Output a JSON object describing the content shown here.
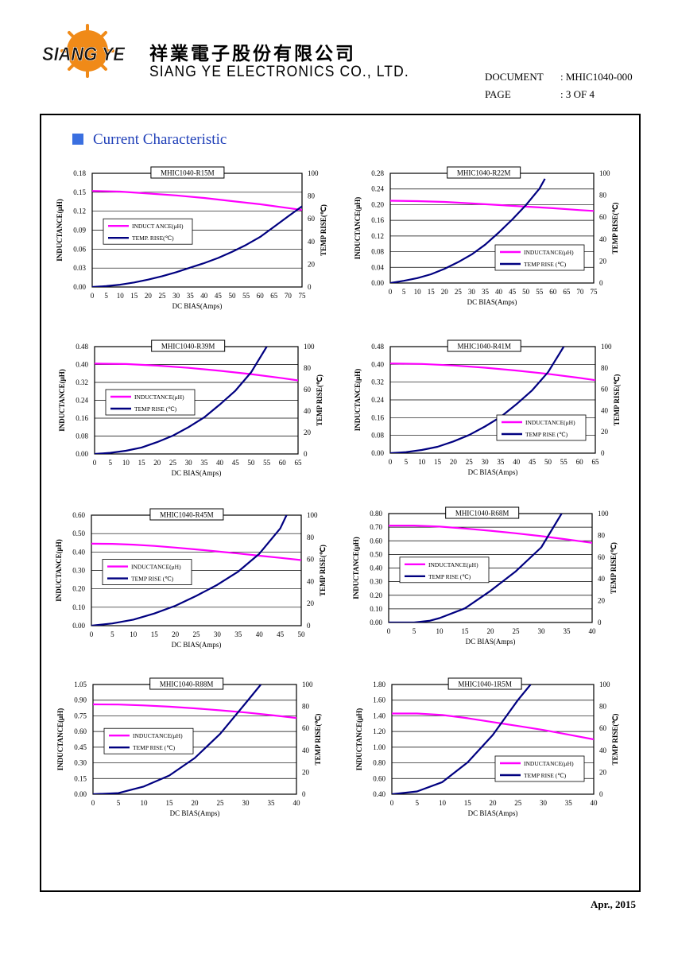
{
  "header": {
    "logo_text": "SIANG YE",
    "company_name_cn": "祥業電子股份有限公司",
    "company_name_en": "SIANG YE ELECTRONICS CO., LTD.",
    "document_label": "DOCUMENT",
    "document_value": ": MHIC1040-000",
    "page_label": "PAGE",
    "page_value": ": 3 OF 4"
  },
  "section_title": "Current Characteristic",
  "footer": {
    "date": "Apr., 2015"
  },
  "colors": {
    "inductance": "#ff00ff",
    "temp_rise": "#000080",
    "section": "#1f3fb8"
  },
  "chart_data": [
    {
      "type": "line",
      "title": "MHIC1040-R15M",
      "xlabel": "DC BIAS(Amps)",
      "ylabel": "INDUCTANCE(μH)",
      "y2label": "TEMP RISE(℃)",
      "xlim": [
        0,
        75
      ],
      "xticks": [
        0,
        5,
        10,
        15,
        20,
        25,
        30,
        35,
        40,
        45,
        50,
        55,
        60,
        65,
        70,
        75
      ],
      "ylim": [
        0,
        0.18
      ],
      "yticks": [
        0,
        0.03,
        0.06,
        0.09,
        0.12,
        0.15,
        0.18
      ],
      "ydec": 2,
      "y2lim": [
        0,
        100
      ],
      "y2ticks": [
        0,
        20,
        40,
        60,
        80,
        100
      ],
      "legend_position": "left",
      "series": [
        {
          "name": "INDUCT ANCE(μH)",
          "axis": "left",
          "x": [
            0,
            10,
            20,
            30,
            40,
            50,
            60,
            70,
            75
          ],
          "y": [
            0.152,
            0.151,
            0.148,
            0.145,
            0.141,
            0.136,
            0.131,
            0.125,
            0.122
          ]
        },
        {
          "name": "TEMP. RISE(℃)",
          "axis": "right",
          "x": [
            0,
            5,
            10,
            15,
            20,
            25,
            30,
            35,
            40,
            45,
            50,
            55,
            60,
            65,
            70,
            75
          ],
          "y": [
            0,
            0.8,
            2,
            4,
            6.5,
            9.5,
            13,
            17,
            21,
            25.5,
            31,
            37,
            44,
            53,
            62,
            71
          ]
        }
      ]
    },
    {
      "type": "line",
      "title": "MHIC1040-R22M",
      "xlabel": "DC BIAS(Amps)",
      "ylabel": "INDUCTANCE(μH)",
      "y2label": "TEMP RISE(℃)",
      "xlim": [
        0,
        75
      ],
      "xticks": [
        0,
        5,
        10,
        15,
        20,
        25,
        30,
        35,
        40,
        45,
        50,
        55,
        60,
        65,
        70,
        75
      ],
      "ylim": [
        0,
        0.28
      ],
      "yticks": [
        0,
        0.04,
        0.08,
        0.12,
        0.16,
        0.2,
        0.24,
        0.28
      ],
      "ydec": 2,
      "y2lim": [
        0,
        100
      ],
      "y2ticks": [
        0,
        20,
        40,
        60,
        80,
        100
      ],
      "legend_position": "bottom-right",
      "series": [
        {
          "name": "INDUCTANCE(μH)",
          "axis": "left",
          "x": [
            0,
            10,
            20,
            30,
            40,
            50,
            60,
            70,
            75
          ],
          "y": [
            0.21,
            0.209,
            0.207,
            0.203,
            0.199,
            0.195,
            0.191,
            0.186,
            0.184
          ]
        },
        {
          "name": "TEMP RISE (℃)",
          "axis": "right",
          "x": [
            0,
            5,
            10,
            15,
            20,
            25,
            30,
            35,
            40,
            45,
            50,
            55,
            57
          ],
          "y": [
            0,
            2,
            4.5,
            8,
            13,
            19,
            26,
            35,
            46,
            58,
            71,
            86,
            95
          ]
        }
      ]
    },
    {
      "type": "line",
      "title": "MHIC1040-R39M",
      "xlabel": "DC BIAS(Amps)",
      "ylabel": "INDUCTANCE(μH)",
      "y2label": "TEMP RISE(℃)",
      "xlim": [
        0,
        65
      ],
      "xticks": [
        0,
        5,
        10,
        15,
        20,
        25,
        30,
        35,
        40,
        45,
        50,
        55,
        60,
        65
      ],
      "ylim": [
        0,
        0.48
      ],
      "yticks": [
        0,
        0.08,
        0.16,
        0.24,
        0.32,
        0.4,
        0.48
      ],
      "ydec": 2,
      "y2lim": [
        0,
        100
      ],
      "y2ticks": [
        0,
        20,
        40,
        60,
        80,
        100
      ],
      "legend_position": "left",
      "series": [
        {
          "name": "INDUCTANCE(μH)",
          "axis": "left",
          "x": [
            0,
            10,
            20,
            30,
            40,
            50,
            60,
            65
          ],
          "y": [
            0.404,
            0.402,
            0.395,
            0.385,
            0.372,
            0.357,
            0.339,
            0.329
          ]
        },
        {
          "name": "TEMP RISE (℃)",
          "axis": "right",
          "x": [
            0,
            5,
            10,
            15,
            20,
            25,
            30,
            35,
            40,
            45,
            50,
            55
          ],
          "y": [
            0,
            1,
            3,
            6,
            11,
            17,
            25,
            34,
            46,
            59,
            76,
            100
          ]
        }
      ]
    },
    {
      "type": "line",
      "title": "MHIC1040-R41M",
      "xlabel": "DC BIAS(Amps)",
      "ylabel": "INDUCTANCE(μH)",
      "y2label": "TEMP RISE(℃)",
      "xlim": [
        0,
        65
      ],
      "xticks": [
        0,
        5,
        10,
        15,
        20,
        25,
        30,
        35,
        40,
        45,
        50,
        55,
        60,
        65
      ],
      "ylim": [
        0,
        0.48
      ],
      "yticks": [
        0,
        0.08,
        0.16,
        0.24,
        0.32,
        0.4,
        0.48
      ],
      "ydec": 2,
      "y2lim": [
        0,
        100
      ],
      "y2ticks": [
        0,
        20,
        40,
        60,
        80,
        100
      ],
      "legend_position": "bottom-right",
      "series": [
        {
          "name": "INDUCTANCE(μH)",
          "axis": "left",
          "x": [
            0,
            10,
            20,
            30,
            40,
            50,
            60,
            65
          ],
          "y": [
            0.404,
            0.402,
            0.395,
            0.385,
            0.372,
            0.357,
            0.339,
            0.329
          ]
        },
        {
          "name": "TEMP RISE (℃)",
          "axis": "right",
          "x": [
            0,
            5,
            10,
            15,
            20,
            25,
            30,
            35,
            40,
            45,
            50,
            55
          ],
          "y": [
            0,
            1,
            3,
            6,
            11,
            17,
            25,
            34,
            46,
            59,
            76,
            100
          ]
        }
      ]
    },
    {
      "type": "line",
      "title": "MHIC1040-R45M",
      "xlabel": "DC BIAS(Amps)",
      "ylabel": "INDUCTANCE(μH)",
      "y2label": "TEMP RISE(℃)",
      "xlim": [
        0,
        50
      ],
      "xticks": [
        0,
        5,
        10,
        15,
        20,
        25,
        30,
        35,
        40,
        45,
        50
      ],
      "ylim": [
        0,
        0.6
      ],
      "yticks": [
        0,
        0.1,
        0.2,
        0.3,
        0.4,
        0.5,
        0.6
      ],
      "ydec": 2,
      "y2lim": [
        0,
        100
      ],
      "y2ticks": [
        0,
        20,
        40,
        60,
        80,
        100
      ],
      "legend_position": "left",
      "series": [
        {
          "name": "INDUCTANCE(μH)",
          "axis": "left",
          "x": [
            0,
            5,
            10,
            15,
            20,
            25,
            30,
            35,
            40,
            45,
            50
          ],
          "y": [
            0.445,
            0.444,
            0.44,
            0.433,
            0.424,
            0.414,
            0.403,
            0.392,
            0.38,
            0.368,
            0.356
          ]
        },
        {
          "name": "TEMP RISE (℃)",
          "axis": "right",
          "x": [
            0,
            5,
            10,
            15,
            20,
            25,
            30,
            35,
            40,
            45,
            46.5
          ],
          "y": [
            0,
            2,
            5.5,
            11,
            18,
            27,
            37,
            49,
            65,
            88,
            100
          ]
        }
      ]
    },
    {
      "type": "line",
      "title": "MHIC1040-R68M",
      "xlabel": "DC BIAS(Amps)",
      "ylabel": "INDUCTANCE(μH)",
      "y2label": "TEMP RISE(℃)",
      "xlim": [
        0,
        40
      ],
      "xticks": [
        0,
        5,
        10,
        15,
        20,
        25,
        30,
        35,
        40
      ],
      "ylim": [
        0,
        0.8
      ],
      "yticks": [
        0,
        0.1,
        0.2,
        0.3,
        0.4,
        0.5,
        0.6,
        0.7,
        0.8
      ],
      "ydec": 2,
      "y2lim": [
        0,
        100
      ],
      "y2ticks": [
        0,
        20,
        40,
        60,
        80,
        100
      ],
      "legend_position": "left",
      "series": [
        {
          "name": "INDUCTANCE(μH)",
          "axis": "left",
          "x": [
            0,
            5,
            10,
            15,
            20,
            25,
            30,
            35,
            40
          ],
          "y": [
            0.712,
            0.712,
            0.704,
            0.69,
            0.674,
            0.655,
            0.634,
            0.61,
            0.585
          ]
        },
        {
          "name": "TEMP RISE (℃)",
          "axis": "right",
          "x": [
            0,
            5,
            8,
            10,
            15,
            20,
            25,
            30,
            34
          ],
          "y": [
            0,
            0,
            1.5,
            4,
            13,
            29,
            47,
            69,
            100
          ]
        }
      ]
    },
    {
      "type": "line",
      "title": "MHIC1040-R88M",
      "xlabel": "DC BIAS(Amps)",
      "ylabel": "INDUCTANCE(μH)",
      "y2label": "TEMP RISE(℃)",
      "xlim": [
        0,
        40
      ],
      "xticks": [
        0,
        5,
        10,
        15,
        20,
        25,
        30,
        35,
        40
      ],
      "ylim": [
        0,
        1.05
      ],
      "yticks": [
        0,
        0.15,
        0.3,
        0.45,
        0.6,
        0.75,
        0.9,
        1.05
      ],
      "ydec": 2,
      "y2lim": [
        0,
        100
      ],
      "y2ticks": [
        0,
        20,
        40,
        60,
        80,
        100
      ],
      "legend_position": "left",
      "series": [
        {
          "name": "INDUCTANCE(μH)",
          "axis": "left",
          "x": [
            0,
            5,
            10,
            15,
            20,
            25,
            30,
            35,
            40
          ],
          "y": [
            0.86,
            0.858,
            0.85,
            0.838,
            0.822,
            0.803,
            0.782,
            0.757,
            0.73
          ]
        },
        {
          "name": "TEMP RISE (℃)",
          "axis": "right",
          "x": [
            0,
            5,
            10,
            15,
            20,
            25,
            30,
            33
          ],
          "y": [
            0,
            1,
            7,
            17,
            33,
            55,
            83,
            100
          ]
        }
      ]
    },
    {
      "type": "line",
      "title": "MHIC1040-1R5M",
      "xlabel": "DC BIAS(Amps)",
      "ylabel": "INDUCTANCE(μH)",
      "y2label": "TEMP RISE(℃)",
      "xlim": [
        0,
        40
      ],
      "xticks": [
        0,
        5,
        10,
        15,
        20,
        25,
        30,
        35,
        40
      ],
      "ylim": [
        0.4,
        1.8
      ],
      "yticks": [
        0.4,
        0.6,
        0.8,
        1.0,
        1.2,
        1.4,
        1.6,
        1.8
      ],
      "ydec": 2,
      "y2lim": [
        0,
        100
      ],
      "y2ticks": [
        0,
        20,
        40,
        60,
        80,
        100
      ],
      "legend_position": "bottom-right",
      "series": [
        {
          "name": "INDUCTANCE(μH)",
          "axis": "left",
          "x": [
            0,
            5,
            10,
            15,
            20,
            25,
            30,
            35,
            40
          ],
          "y": [
            1.43,
            1.43,
            1.41,
            1.37,
            1.32,
            1.27,
            1.22,
            1.16,
            1.1
          ]
        },
        {
          "name": "TEMP RISE (℃)",
          "axis": "right",
          "x": [
            0,
            5,
            10,
            15,
            20,
            25,
            27.5
          ],
          "y": [
            0,
            2.5,
            11,
            29,
            54,
            86,
            100
          ]
        }
      ]
    }
  ]
}
